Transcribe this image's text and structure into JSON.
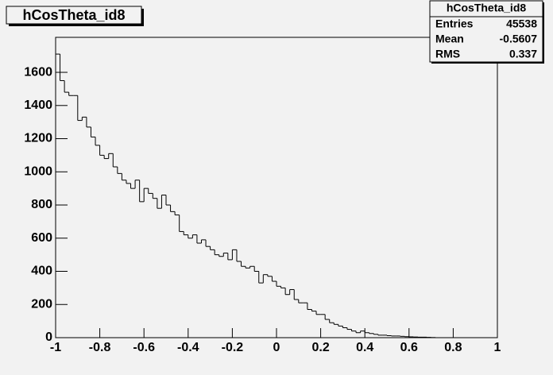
{
  "chart_data": {
    "type": "histogram",
    "title": "hCosTheta_id8",
    "bins": [
      -1,
      -0.98,
      -0.96,
      -0.94,
      -0.92,
      -0.9,
      -0.88,
      -0.86,
      -0.84,
      -0.82,
      -0.8,
      -0.78,
      -0.76,
      -0.74,
      -0.72,
      -0.7,
      -0.68,
      -0.66,
      -0.64,
      -0.62,
      -0.6,
      -0.58,
      -0.56,
      -0.54,
      -0.52,
      -0.5,
      -0.48,
      -0.46,
      -0.44,
      -0.42,
      -0.4,
      -0.38,
      -0.36,
      -0.34,
      -0.32,
      -0.3,
      -0.28,
      -0.26,
      -0.24,
      -0.22,
      -0.2,
      -0.18,
      -0.16,
      -0.14,
      -0.12,
      -0.1,
      -0.08,
      -0.06,
      -0.04,
      -0.02,
      0,
      0.02,
      0.04,
      0.06,
      0.08,
      0.1,
      0.12,
      0.14,
      0.16,
      0.18,
      0.2,
      0.22,
      0.24,
      0.26,
      0.28,
      0.3,
      0.32,
      0.34,
      0.36,
      0.38,
      0.4,
      0.42,
      0.44,
      0.46,
      0.48,
      0.5,
      0.52,
      0.54,
      0.56,
      0.58,
      0.6,
      0.62,
      0.64,
      0.66,
      0.68,
      0.7,
      0.72,
      0.74,
      0.76,
      0.78,
      0.8,
      0.82,
      0.84,
      0.86,
      0.88,
      0.9,
      0.92,
      0.94,
      0.96,
      0.98,
      1
    ],
    "values": [
      1710,
      1550,
      1480,
      1460,
      1460,
      1310,
      1330,
      1270,
      1210,
      1160,
      1100,
      1080,
      1110,
      1030,
      990,
      950,
      930,
      900,
      950,
      820,
      900,
      870,
      840,
      780,
      860,
      800,
      760,
      740,
      640,
      620,
      600,
      620,
      570,
      590,
      550,
      530,
      500,
      490,
      510,
      470,
      530,
      460,
      430,
      420,
      430,
      400,
      330,
      380,
      370,
      340,
      310,
      300,
      260,
      290,
      230,
      210,
      210,
      170,
      160,
      140,
      140,
      110,
      90,
      80,
      70,
      60,
      50,
      40,
      30,
      40,
      30,
      25,
      20,
      15,
      15,
      12,
      10,
      10,
      8,
      6,
      5,
      4,
      3,
      3,
      2,
      1,
      0,
      0,
      0,
      0,
      0,
      0,
      0,
      0,
      0,
      0,
      0,
      0,
      0,
      0
    ],
    "color": "#000000",
    "xlim": [
      -1,
      1
    ],
    "xticks": [
      -1,
      -0.8,
      -0.6,
      -0.4,
      -0.2,
      0,
      0.2,
      0.4,
      0.6,
      0.8,
      1
    ],
    "ylim": [
      0,
      1811
    ],
    "yticks": [
      0,
      200,
      400,
      600,
      800,
      1000,
      1200,
      1400,
      1600
    ],
    "stats": {
      "title": "hCosTheta_id8",
      "rows": [
        {
          "label": "Entries",
          "value": 45538
        },
        {
          "label": "Mean",
          "value": -0.5607
        },
        {
          "label": "RMS",
          "value": 0.337
        }
      ]
    }
  }
}
